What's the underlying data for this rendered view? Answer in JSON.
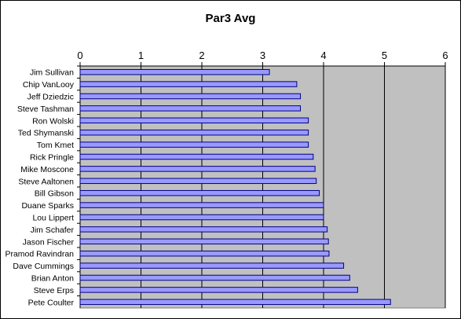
{
  "chart_data": {
    "type": "bar",
    "orientation": "horizontal",
    "title": "Par3 Avg",
    "xlabel": "",
    "ylabel": "",
    "xlim": [
      0,
      6
    ],
    "x_ticks": [
      0,
      1,
      2,
      3,
      4,
      5,
      6
    ],
    "x_axis_position": "top",
    "grid": true,
    "legend": "none",
    "colors": {
      "bar_fill": "#9999ff",
      "bar_stroke": "#000080",
      "plot_background": "#c0c0c0",
      "gridline": "#000000"
    },
    "categories": [
      "Jim Sullivan",
      "Chip VanLooy",
      "Jeff Dziedzic",
      "Steve Tashman",
      "Ron Wolski",
      "Ted Shymanski",
      "Tom Kmet",
      "Rick Pringle",
      "Mike Moscone",
      "Steve Aaltonen",
      "Bill Gibson",
      "Duane Sparks",
      "Lou Lippert",
      "Jim Schafer",
      "Jason Fischer",
      "Pramod Ravindran",
      "Dave Cummings",
      "Brian Anton",
      "Steve Erps",
      "Pete Coulter"
    ],
    "values": [
      3.11,
      3.56,
      3.62,
      3.62,
      3.75,
      3.75,
      3.75,
      3.83,
      3.86,
      3.88,
      3.93,
      4.0,
      4.0,
      4.06,
      4.08,
      4.09,
      4.33,
      4.43,
      4.56,
      5.1
    ]
  }
}
